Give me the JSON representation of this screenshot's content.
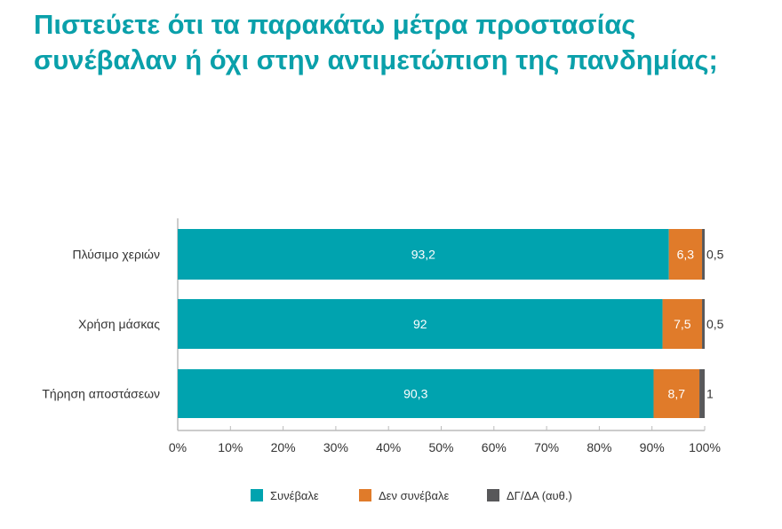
{
  "chart_data": {
    "type": "bar",
    "orientation": "horizontal",
    "stacked": true,
    "title": "Πιστεύετε ότι τα παρακάτω μέτρα προστασίας συνέβαλαν ή όχι στην αντιμετώπιση της πανδημίας;",
    "categories": [
      "Πλύσιμο χεριών",
      "Χρήση μάσκας",
      "Τήρηση αποστάσεων"
    ],
    "series": [
      {
        "name": "Συνέβαλε",
        "color": "#00a3af",
        "values": [
          93.2,
          92,
          90.3
        ],
        "labels": [
          "93,2",
          "92",
          "90,3"
        ]
      },
      {
        "name": "Δεν συνέβαλε",
        "color": "#e07b2a",
        "values": [
          6.3,
          7.5,
          8.7
        ],
        "labels": [
          "6,3",
          "7,5",
          "8,7"
        ]
      },
      {
        "name": "ΔΓ/ΔΑ (αυθ.)",
        "color": "#58585a",
        "values": [
          0.5,
          0.5,
          1
        ],
        "labels": [
          "0,5",
          "0,5",
          "1"
        ]
      }
    ],
    "xlim": [
      0,
      100
    ],
    "xticks": [
      "0%",
      "10%",
      "20%",
      "30%",
      "40%",
      "50%",
      "60%",
      "70%",
      "80%",
      "90%",
      "100%"
    ],
    "legend_position": "bottom",
    "grid": false
  }
}
